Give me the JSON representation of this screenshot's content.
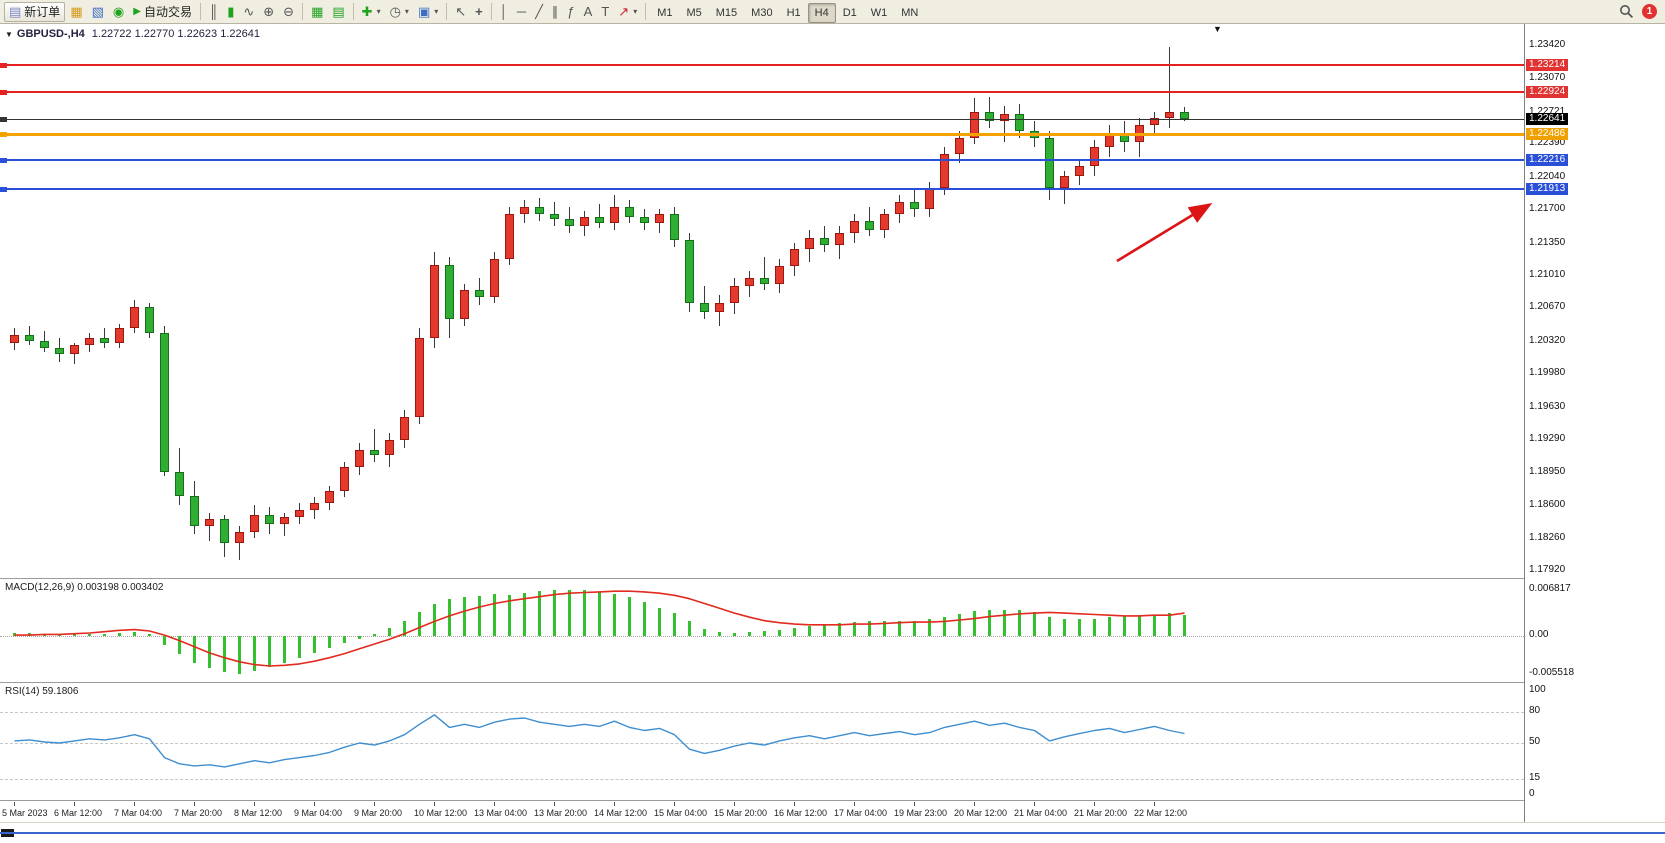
{
  "toolbar": {
    "new_order_label": "新订单",
    "autotrading_label": "自动交易",
    "timeframes": [
      "M1",
      "M5",
      "M15",
      "M30",
      "H1",
      "H4",
      "D1",
      "W1",
      "MN"
    ],
    "active_timeframe": "H4",
    "notification_count": "1",
    "icons": {
      "new_order": "▤",
      "market_watch": "▦",
      "navigator": "▧",
      "community": "◉",
      "autoplay": "▶",
      "bar_chart": "║",
      "candle_chart": "▮",
      "line_chart": "∿",
      "zoom_in": "⊕",
      "zoom_out": "⊖",
      "tile_windows": "▦",
      "cascade_windows": "▤",
      "new_chart": "✚",
      "periods": "◷",
      "templates": "▣",
      "cursor": "↖",
      "crosshair": "+",
      "vline": "│",
      "hline": "─",
      "trendline": "╱",
      "channel": "∥",
      "fibonacci": "ƒ",
      "text": "A",
      "label": "T",
      "arrow_tool": "↗",
      "dropdown": "▾",
      "shift_marker": "▼",
      "collapse": "▼"
    }
  },
  "chart_header": {
    "symbol_period": "GBPUSD-,H4",
    "ohlc": "1.22722 1.22770 1.22623 1.22641"
  },
  "chart_data": {
    "type": "candlestick",
    "symbol": "GBPUSD",
    "period": "H4",
    "price_axis_labels": [
      "1.23420",
      "1.23070",
      "1.22721",
      "1.22390",
      "1.22040",
      "1.21700",
      "1.21350",
      "1.21010",
      "1.20670",
      "1.20320",
      "1.19980",
      "1.19630",
      "1.19290",
      "1.18950",
      "1.18600",
      "1.18260",
      "1.17920"
    ],
    "price_max": 1.2364,
    "price_min": 1.17836,
    "levels": [
      {
        "label": "1.23214",
        "price": 1.23214,
        "color": "#e42222",
        "badge": "#e23333",
        "width": 2
      },
      {
        "label": "1.22924",
        "price": 1.22924,
        "color": "#e42222",
        "badge": "#e23333",
        "width": 2
      },
      {
        "label": "1.22641",
        "price": 1.22641,
        "color": "#333333",
        "badge": "#000000",
        "width": 1
      },
      {
        "label": "1.22486",
        "price": 1.22486,
        "color": "#f5a100",
        "badge": "#f0a000",
        "width": 3
      },
      {
        "label": "1.22216",
        "price": 1.22216,
        "color": "#2b50d8",
        "badge": "#2b50d8",
        "width": 2
      },
      {
        "label": "1.21913",
        "price": 1.21913,
        "color": "#2b50d8",
        "badge": "#2b50d8",
        "width": 2
      }
    ],
    "colors": {
      "up_body": "#e43a2e",
      "down_body": "#2fae33",
      "macd_hist": "#35c02f",
      "macd_signal": "#e32a1e",
      "rsi_line": "#3e8ed0",
      "annotation_arrow": "#dd1414",
      "scroll_line": "#3a66cc"
    },
    "candles": [
      [
        1.203,
        1.2045,
        1.2022,
        1.2038
      ],
      [
        1.2038,
        1.2048,
        1.2028,
        1.2032
      ],
      [
        1.2032,
        1.2042,
        1.202,
        1.2025
      ],
      [
        1.2025,
        1.2035,
        1.201,
        1.2018
      ],
      [
        1.2018,
        1.203,
        1.2008,
        1.2028
      ],
      [
        1.2028,
        1.204,
        1.202,
        1.2035
      ],
      [
        1.2035,
        1.2045,
        1.2025,
        1.203
      ],
      [
        1.203,
        1.205,
        1.2025,
        1.2045
      ],
      [
        1.2045,
        1.2075,
        1.204,
        1.2068
      ],
      [
        1.2068,
        1.2072,
        1.2035,
        1.204
      ],
      [
        1.204,
        1.2048,
        1.189,
        1.1895
      ],
      [
        1.1895,
        1.192,
        1.186,
        1.187
      ],
      [
        1.187,
        1.1885,
        1.183,
        1.1838
      ],
      [
        1.1838,
        1.1852,
        1.1822,
        1.1845
      ],
      [
        1.1845,
        1.185,
        1.1806,
        1.182
      ],
      [
        1.182,
        1.1838,
        1.1802,
        1.1832
      ],
      [
        1.1832,
        1.186,
        1.1825,
        1.185
      ],
      [
        1.185,
        1.1858,
        1.183,
        1.184
      ],
      [
        1.184,
        1.1852,
        1.1828,
        1.1848
      ],
      [
        1.1848,
        1.1862,
        1.184,
        1.1855
      ],
      [
        1.1855,
        1.1868,
        1.1845,
        1.1862
      ],
      [
        1.1862,
        1.188,
        1.1855,
        1.1875
      ],
      [
        1.1875,
        1.1905,
        1.1868,
        1.19
      ],
      [
        1.19,
        1.1925,
        1.1892,
        1.1918
      ],
      [
        1.1918,
        1.194,
        1.1905,
        1.1912
      ],
      [
        1.1912,
        1.1935,
        1.19,
        1.1928
      ],
      [
        1.1928,
        1.196,
        1.192,
        1.1952
      ],
      [
        1.1952,
        1.2045,
        1.1945,
        1.2035
      ],
      [
        1.2035,
        1.2125,
        1.2025,
        1.2112
      ],
      [
        1.2112,
        1.212,
        1.2035,
        1.2055
      ],
      [
        1.2055,
        1.2092,
        1.2048,
        1.2085
      ],
      [
        1.2085,
        1.2098,
        1.207,
        1.2078
      ],
      [
        1.2078,
        1.2125,
        1.2072,
        1.2118
      ],
      [
        1.2118,
        1.2172,
        1.2112,
        1.2165
      ],
      [
        1.2165,
        1.218,
        1.2155,
        1.2172
      ],
      [
        1.2172,
        1.2182,
        1.2158,
        1.2165
      ],
      [
        1.2165,
        1.2178,
        1.2152,
        1.216
      ],
      [
        1.216,
        1.2172,
        1.2145,
        1.2152
      ],
      [
        1.2152,
        1.2168,
        1.2142,
        1.2162
      ],
      [
        1.2162,
        1.2175,
        1.215,
        1.2155
      ],
      [
        1.2155,
        1.2185,
        1.2148,
        1.2172
      ],
      [
        1.2172,
        1.218,
        1.2155,
        1.2162
      ],
      [
        1.2162,
        1.217,
        1.2148,
        1.2155
      ],
      [
        1.2155,
        1.217,
        1.2145,
        1.2165
      ],
      [
        1.2165,
        1.2172,
        1.213,
        1.2138
      ],
      [
        1.2138,
        1.2145,
        1.2062,
        1.2072
      ],
      [
        1.2072,
        1.209,
        1.2055,
        1.2062
      ],
      [
        1.2062,
        1.208,
        1.2048,
        1.2072
      ],
      [
        1.2072,
        1.2098,
        1.206,
        1.209
      ],
      [
        1.209,
        1.2105,
        1.2078,
        1.2098
      ],
      [
        1.2098,
        1.212,
        1.2085,
        1.2092
      ],
      [
        1.2092,
        1.2118,
        1.2082,
        1.211
      ],
      [
        1.211,
        1.2135,
        1.21,
        1.2128
      ],
      [
        1.2128,
        1.2148,
        1.2115,
        1.214
      ],
      [
        1.214,
        1.2152,
        1.2125,
        1.2132
      ],
      [
        1.2132,
        1.2152,
        1.2118,
        1.2145
      ],
      [
        1.2145,
        1.2165,
        1.2135,
        1.2158
      ],
      [
        1.2158,
        1.2172,
        1.2142,
        1.2148
      ],
      [
        1.2148,
        1.217,
        1.214,
        1.2165
      ],
      [
        1.2165,
        1.2185,
        1.2155,
        1.2178
      ],
      [
        1.2178,
        1.2192,
        1.2162,
        1.217
      ],
      [
        1.217,
        1.2198,
        1.2162,
        1.2192
      ],
      [
        1.2192,
        1.2235,
        1.2185,
        1.2228
      ],
      [
        1.2228,
        1.2252,
        1.2218,
        1.2245
      ],
      [
        1.2245,
        1.2286,
        1.2238,
        1.2272
      ],
      [
        1.2272,
        1.2288,
        1.2255,
        1.2262
      ],
      [
        1.2262,
        1.2278,
        1.224,
        1.227
      ],
      [
        1.227,
        1.228,
        1.2245,
        1.2252
      ],
      [
        1.2252,
        1.2262,
        1.2235,
        1.2245
      ],
      [
        1.2245,
        1.2252,
        1.218,
        1.2192
      ],
      [
        1.2192,
        1.221,
        1.2175,
        1.2205
      ],
      [
        1.2205,
        1.222,
        1.2195,
        1.2215
      ],
      [
        1.2215,
        1.2242,
        1.2205,
        1.2235
      ],
      [
        1.2235,
        1.2258,
        1.2225,
        1.225
      ],
      [
        1.225,
        1.2262,
        1.223,
        1.224
      ],
      [
        1.224,
        1.2265,
        1.2225,
        1.2258
      ],
      [
        1.2258,
        1.2272,
        1.2248,
        1.2265
      ],
      [
        1.2265,
        1.234,
        1.2255,
        1.2272
      ],
      [
        1.22722,
        1.2277,
        1.22623,
        1.22641
      ]
    ],
    "time_labels": [
      "5 Mar 2023",
      "6 Mar 12:00",
      "7 Mar 04:00",
      "7 Mar 20:00",
      "8 Mar 12:00",
      "9 Mar 04:00",
      "9 Mar 20:00",
      "10 Mar 12:00",
      "13 Mar 04:00",
      "13 Mar 20:00",
      "14 Mar 12:00",
      "15 Mar 04:00",
      "15 Mar 20:00",
      "16 Mar 12:00",
      "17 Mar 04:00",
      "19 Mar 23:00",
      "20 Mar 12:00",
      "21 Mar 04:00",
      "21 Mar 20:00",
      "22 Mar 12:00"
    ],
    "macd": {
      "name_label": "MACD(12,26,9) 0.003198 0.003402",
      "axis_labels": [
        "0.006817",
        "0.00",
        "-0.005518"
      ],
      "axis_values": [
        0.006817,
        0,
        -0.005518
      ],
      "vmax": 0.0075,
      "vmin": -0.0062,
      "histogram": [
        0.0005,
        0.0005,
        0.0004,
        0.0003,
        0.0003,
        0.0004,
        0.0004,
        0.0005,
        0.0007,
        0.0004,
        -0.0012,
        -0.0026,
        -0.0038,
        -0.0046,
        -0.0052,
        -0.005518,
        -0.005,
        -0.0044,
        -0.0038,
        -0.0031,
        -0.0024,
        -0.0017,
        -0.001,
        -0.0003,
        0.0004,
        0.0012,
        0.0022,
        0.0036,
        0.0048,
        0.0054,
        0.0057,
        0.0059,
        0.0062,
        0.006,
        0.0063,
        0.0066,
        0.0067,
        0.006817,
        0.0067,
        0.0065,
        0.0062,
        0.0057,
        0.005,
        0.0042,
        0.0034,
        0.0022,
        0.0011,
        0.0006,
        0.0005,
        0.0006,
        0.0008,
        0.001,
        0.0013,
        0.0015,
        0.0017,
        0.0019,
        0.0021,
        0.0022,
        0.0022,
        0.0023,
        0.0023,
        0.0025,
        0.0029,
        0.0033,
        0.0037,
        0.0039,
        0.0039,
        0.0038,
        0.0035,
        0.0029,
        0.0025,
        0.0025,
        0.0026,
        0.0028,
        0.003,
        0.0031,
        0.0032,
        0.0034,
        0.003198
      ],
      "signal": [
        0.0002,
        0.0002,
        0.0003,
        0.0003,
        0.0004,
        0.0005,
        0.0007,
        0.0009,
        0.001,
        0.0008,
        0.0002,
        -0.0006,
        -0.0015,
        -0.0024,
        -0.0031,
        -0.0037,
        -0.0041,
        -0.0043,
        -0.0042,
        -0.004,
        -0.0036,
        -0.0031,
        -0.0025,
        -0.0018,
        -0.0011,
        -0.0004,
        0.0004,
        0.0013,
        0.0022,
        0.003,
        0.0037,
        0.0043,
        0.0048,
        0.0052,
        0.0055,
        0.0058,
        0.0061,
        0.0063,
        0.0064,
        0.0065,
        0.0066,
        0.0066,
        0.0065,
        0.0063,
        0.006,
        0.0055,
        0.0048,
        0.0041,
        0.0034,
        0.0028,
        0.0023,
        0.002,
        0.0018,
        0.0017,
        0.0017,
        0.0017,
        0.0018,
        0.0018,
        0.0019,
        0.002,
        0.0021,
        0.0021,
        0.0022,
        0.0024,
        0.0026,
        0.0029,
        0.0031,
        0.0033,
        0.0034,
        0.0035,
        0.0034,
        0.0033,
        0.0032,
        0.0031,
        0.003,
        0.003,
        0.0031,
        0.0031,
        0.003402
      ]
    },
    "rsi": {
      "name_label": "RSI(14) 59.1806",
      "axis_labels": [
        "100",
        "80",
        "50",
        "15",
        "0"
      ],
      "axis_values": [
        100,
        80,
        50,
        15,
        0
      ],
      "level_lines": [
        80,
        50,
        15
      ],
      "values": [
        52,
        53,
        51,
        50,
        52,
        54,
        53,
        55,
        58,
        54,
        36,
        30,
        28,
        29,
        27,
        30,
        33,
        31,
        34,
        36,
        38,
        41,
        46,
        50,
        48,
        52,
        58,
        68,
        77,
        65,
        68,
        65,
        70,
        73,
        74,
        70,
        68,
        66,
        68,
        66,
        71,
        65,
        62,
        64,
        58,
        44,
        40,
        43,
        47,
        50,
        48,
        52,
        55,
        57,
        54,
        57,
        60,
        57,
        59,
        61,
        58,
        60,
        65,
        68,
        71,
        67,
        69,
        65,
        62,
        52,
        56,
        59,
        62,
        64,
        60,
        63,
        66,
        62,
        59.18
      ]
    },
    "annotations": [
      {
        "name": "trend-arrow",
        "color": "#dd1414"
      }
    ]
  }
}
